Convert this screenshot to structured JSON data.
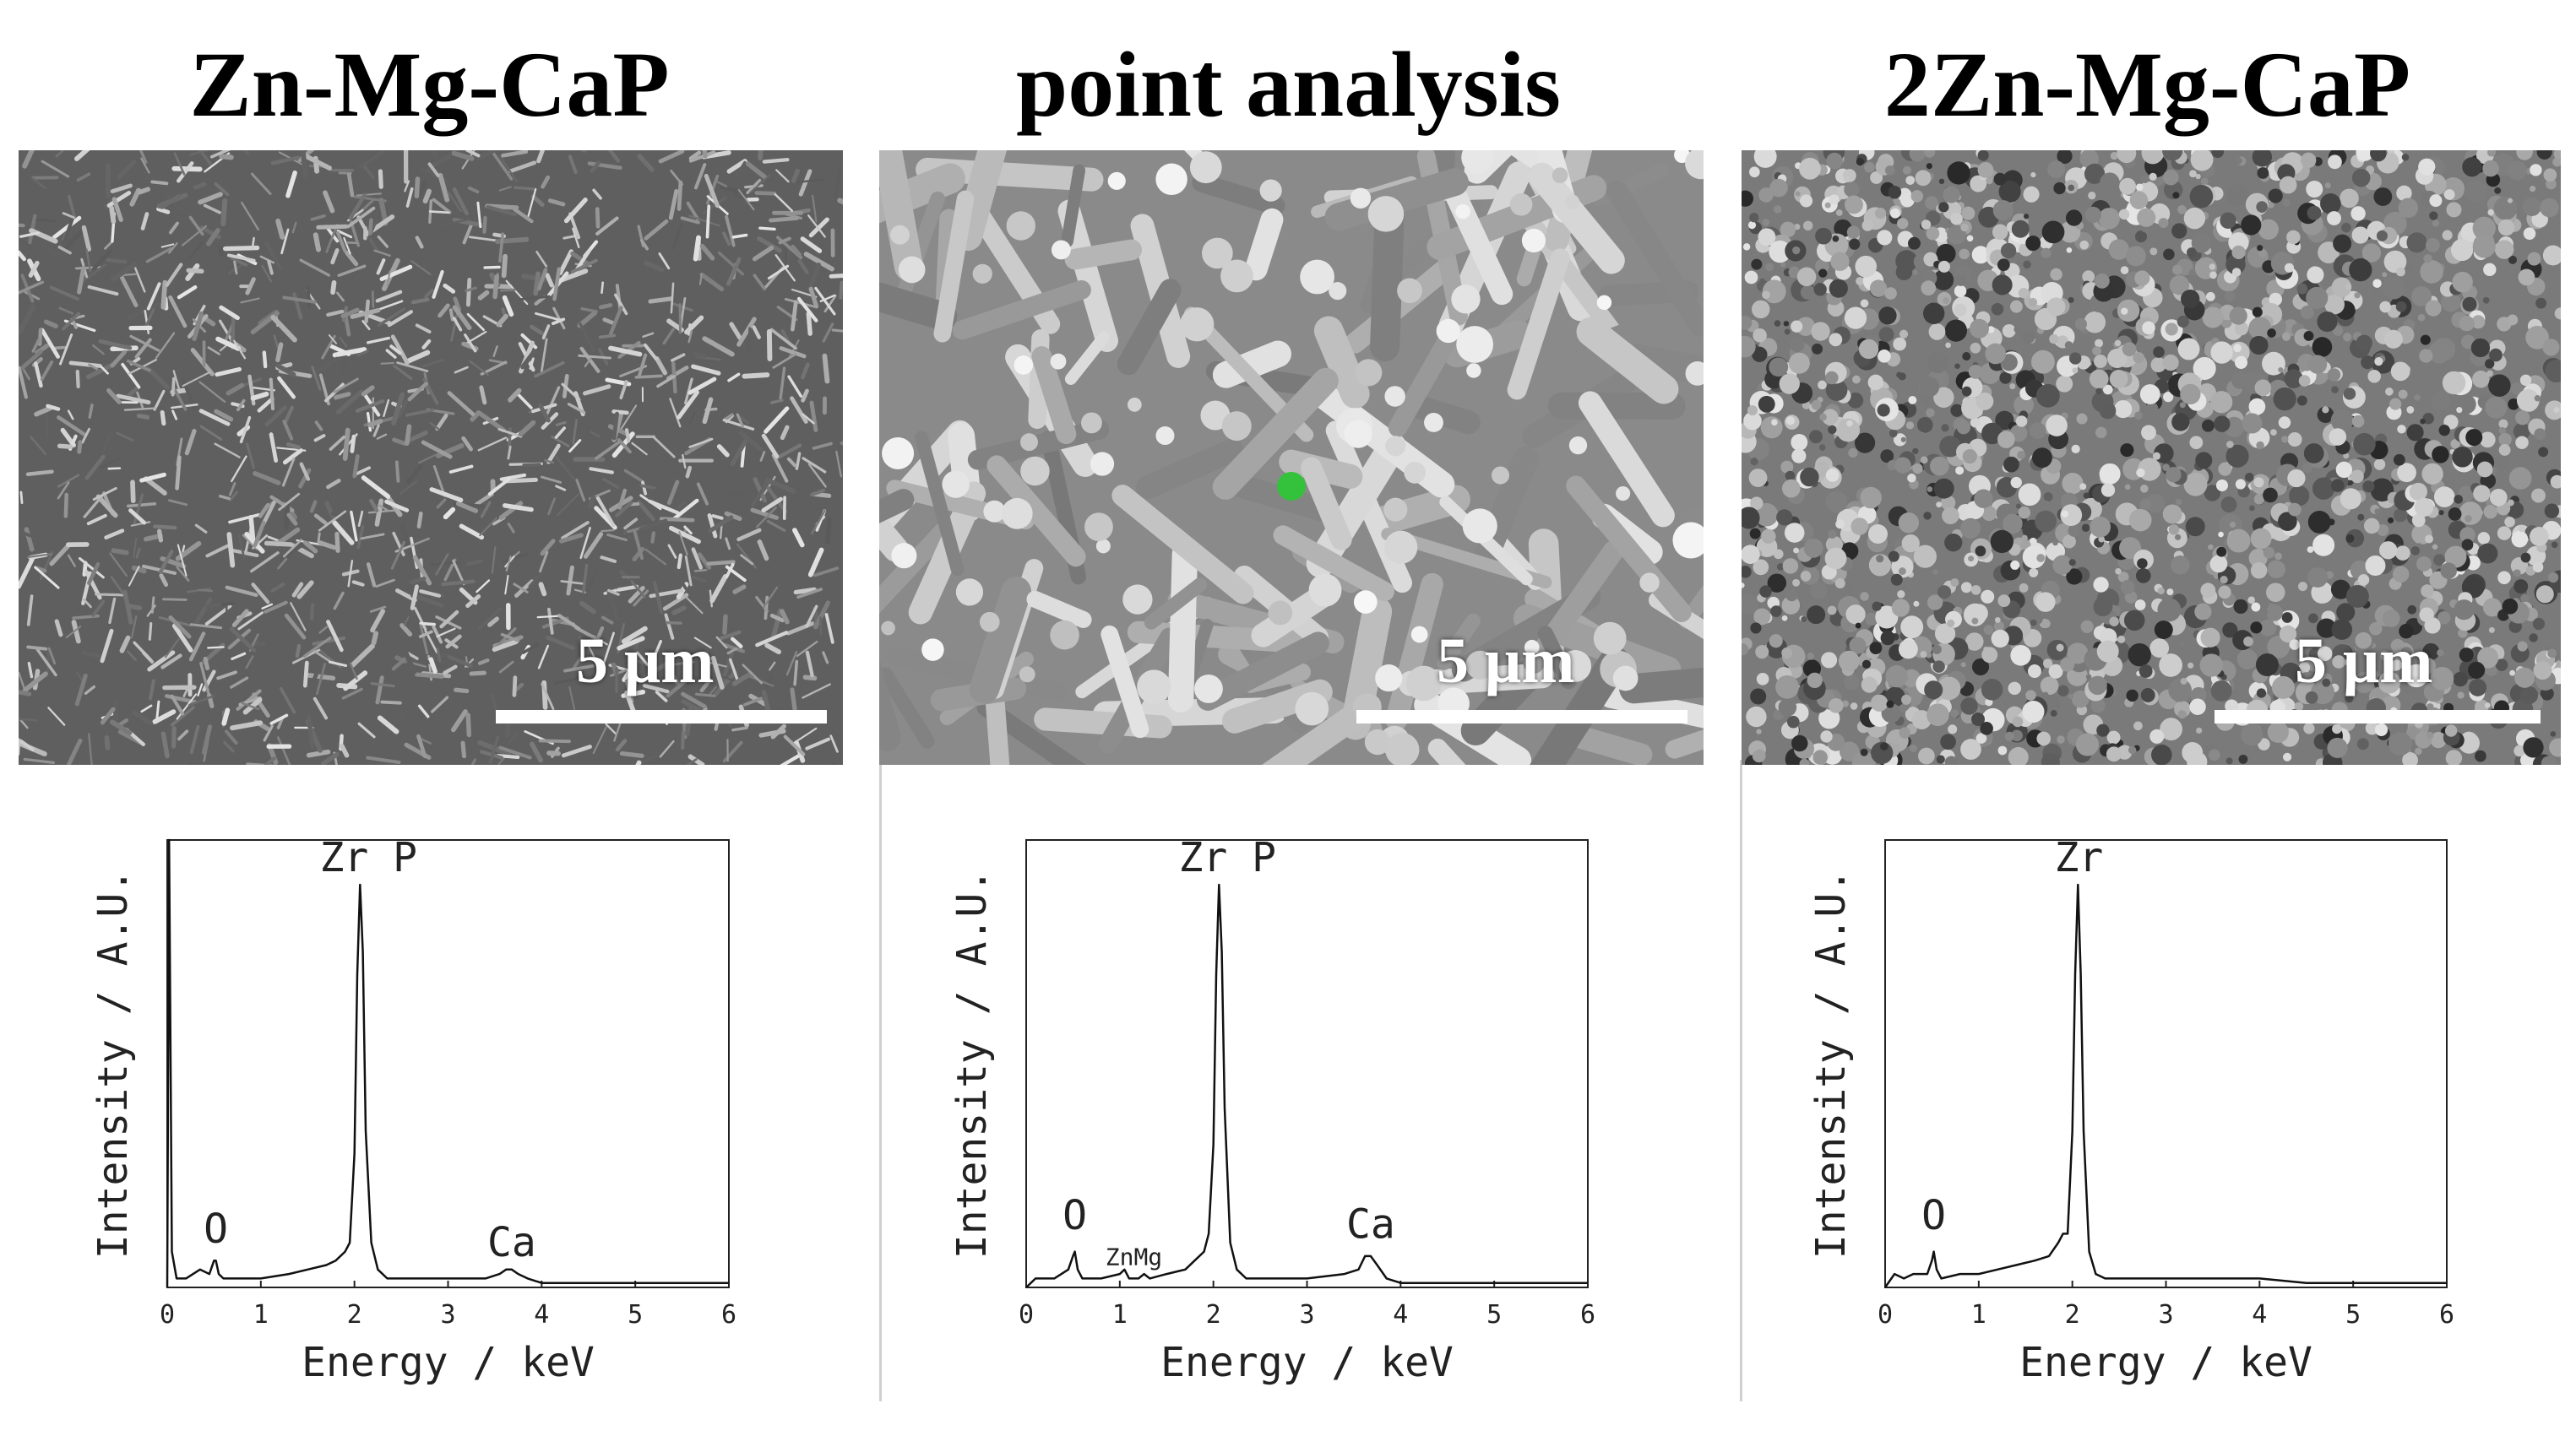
{
  "panels": [
    {
      "title": "Zn-Mg-CaP",
      "scale_bar": "5 μm",
      "texture": "needles",
      "marker": null
    },
    {
      "title": "point analysis",
      "scale_bar": "5 μm",
      "texture": "needles-zoom",
      "marker": {
        "color": "#34c23c"
      }
    },
    {
      "title": "2Zn-Mg-CaP",
      "scale_bar": "5 μm",
      "texture": "granular",
      "marker": null
    }
  ],
  "chart_data": [
    {
      "type": "line",
      "xlabel": "Energy / keV",
      "ylabel": "Intensity / A.U.",
      "xlim": [
        0,
        6
      ],
      "xticks": [
        0,
        1,
        2,
        3,
        4,
        5,
        6
      ],
      "ylim": [
        0,
        1
      ],
      "series": [
        {
          "x": [
            0.0,
            0.02,
            0.05,
            0.1,
            0.2,
            0.35,
            0.45,
            0.5,
            0.52,
            0.55,
            0.6,
            0.8,
            1.0,
            1.3,
            1.5,
            1.7,
            1.8,
            1.9,
            1.95,
            2.0,
            2.03,
            2.06,
            2.09,
            2.12,
            2.18,
            2.25,
            2.35,
            2.6,
            3.0,
            3.4,
            3.55,
            3.62,
            3.68,
            3.75,
            3.85,
            4.0,
            4.5,
            5.0,
            5.5,
            6.0
          ],
          "y": [
            0.0,
            1.0,
            0.08,
            0.02,
            0.02,
            0.04,
            0.03,
            0.06,
            0.06,
            0.03,
            0.02,
            0.02,
            0.02,
            0.03,
            0.04,
            0.05,
            0.06,
            0.08,
            0.1,
            0.3,
            0.7,
            0.9,
            0.75,
            0.35,
            0.1,
            0.04,
            0.02,
            0.02,
            0.02,
            0.02,
            0.03,
            0.04,
            0.04,
            0.03,
            0.02,
            0.01,
            0.01,
            0.01,
            0.01,
            0.01
          ]
        }
      ],
      "annotations": [
        {
          "text": "Zr  P",
          "x": 2.15,
          "y": 0.93
        },
        {
          "text": "O",
          "x": 0.52,
          "y": 0.1
        },
        {
          "text": "Ca",
          "x": 3.68,
          "y": 0.07
        }
      ]
    },
    {
      "type": "line",
      "xlabel": "Energy / keV",
      "ylabel": "Intensity / A.U.",
      "xlim": [
        0,
        6
      ],
      "xticks": [
        0,
        1,
        2,
        3,
        4,
        5,
        6
      ],
      "ylim": [
        0,
        1
      ],
      "series": [
        {
          "x": [
            0.0,
            0.1,
            0.3,
            0.45,
            0.5,
            0.52,
            0.55,
            0.6,
            0.8,
            1.0,
            1.05,
            1.1,
            1.2,
            1.26,
            1.32,
            1.5,
            1.7,
            1.8,
            1.9,
            1.95,
            2.0,
            2.03,
            2.06,
            2.09,
            2.12,
            2.18,
            2.25,
            2.35,
            2.6,
            3.0,
            3.4,
            3.55,
            3.62,
            3.68,
            3.75,
            3.85,
            4.0,
            4.5,
            5.0,
            5.5,
            6.0
          ],
          "y": [
            0.0,
            0.02,
            0.02,
            0.04,
            0.07,
            0.08,
            0.04,
            0.02,
            0.02,
            0.03,
            0.04,
            0.02,
            0.02,
            0.03,
            0.02,
            0.03,
            0.04,
            0.06,
            0.08,
            0.12,
            0.32,
            0.7,
            0.9,
            0.75,
            0.4,
            0.1,
            0.04,
            0.02,
            0.02,
            0.02,
            0.03,
            0.04,
            0.07,
            0.07,
            0.05,
            0.02,
            0.01,
            0.01,
            0.01,
            0.01,
            0.01
          ]
        }
      ],
      "annotations": [
        {
          "text": "Zr  P",
          "x": 2.15,
          "y": 0.93
        },
        {
          "text": "O",
          "x": 0.52,
          "y": 0.13
        },
        {
          "text": "ZnMg",
          "x": 1.15,
          "y": 0.05
        },
        {
          "text": "Ca",
          "x": 3.68,
          "y": 0.11
        }
      ]
    },
    {
      "type": "line",
      "xlabel": "Energy / keV",
      "ylabel": "Intensity / A.U.",
      "xlim": [
        0,
        6
      ],
      "xticks": [
        0,
        1,
        2,
        3,
        4,
        5,
        6
      ],
      "ylim": [
        0,
        1
      ],
      "series": [
        {
          "x": [
            0.0,
            0.1,
            0.2,
            0.3,
            0.45,
            0.5,
            0.52,
            0.55,
            0.6,
            0.8,
            1.0,
            1.2,
            1.4,
            1.6,
            1.75,
            1.85,
            1.9,
            1.95,
            2.0,
            2.03,
            2.06,
            2.09,
            2.12,
            2.18,
            2.25,
            2.35,
            2.6,
            3.0,
            3.5,
            4.0,
            4.5,
            5.0,
            5.5,
            6.0
          ],
          "y": [
            0.0,
            0.03,
            0.02,
            0.03,
            0.03,
            0.06,
            0.08,
            0.04,
            0.02,
            0.03,
            0.03,
            0.04,
            0.05,
            0.06,
            0.07,
            0.1,
            0.12,
            0.12,
            0.35,
            0.7,
            0.9,
            0.7,
            0.35,
            0.08,
            0.03,
            0.02,
            0.02,
            0.02,
            0.02,
            0.02,
            0.01,
            0.01,
            0.01,
            0.01
          ]
        }
      ],
      "annotations": [
        {
          "text": "Zr",
          "x": 2.07,
          "y": 0.93
        },
        {
          "text": "O",
          "x": 0.52,
          "y": 0.13
        }
      ]
    }
  ]
}
